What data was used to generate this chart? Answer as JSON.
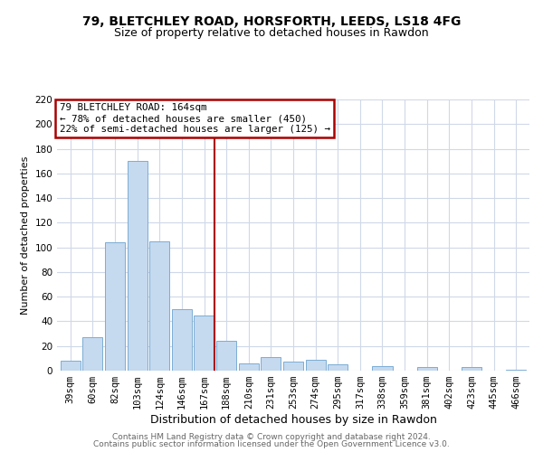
{
  "title1": "79, BLETCHLEY ROAD, HORSFORTH, LEEDS, LS18 4FG",
  "title2": "Size of property relative to detached houses in Rawdon",
  "xlabel": "Distribution of detached houses by size in Rawdon",
  "ylabel": "Number of detached properties",
  "bar_labels": [
    "39sqm",
    "60sqm",
    "82sqm",
    "103sqm",
    "124sqm",
    "146sqm",
    "167sqm",
    "188sqm",
    "210sqm",
    "231sqm",
    "253sqm",
    "274sqm",
    "295sqm",
    "317sqm",
    "338sqm",
    "359sqm",
    "381sqm",
    "402sqm",
    "423sqm",
    "445sqm",
    "466sqm"
  ],
  "bar_heights": [
    8,
    27,
    104,
    170,
    105,
    50,
    45,
    24,
    6,
    11,
    7,
    9,
    5,
    0,
    4,
    0,
    3,
    0,
    3,
    0,
    1
  ],
  "bar_color": "#c5d9ef",
  "bar_edge_color": "#7badd4",
  "vline_color": "#aa0000",
  "annotation_title": "79 BLETCHLEY ROAD: 164sqm",
  "annotation_line1": "← 78% of detached houses are smaller (450)",
  "annotation_line2": "22% of semi-detached houses are larger (125) →",
  "annotation_box_facecolor": "#ffffff",
  "annotation_box_edgecolor": "#aa0000",
  "ylim": [
    0,
    220
  ],
  "yticks": [
    0,
    20,
    40,
    60,
    80,
    100,
    120,
    140,
    160,
    180,
    200,
    220
  ],
  "footer1": "Contains HM Land Registry data © Crown copyright and database right 2024.",
  "footer2": "Contains public sector information licensed under the Open Government Licence v3.0.",
  "bg_color": "#ffffff",
  "grid_color": "#d0d8e8",
  "title1_fontsize": 10,
  "title2_fontsize": 9,
  "xlabel_fontsize": 9,
  "ylabel_fontsize": 8,
  "tick_fontsize": 7.5,
  "footer_fontsize": 6.5
}
